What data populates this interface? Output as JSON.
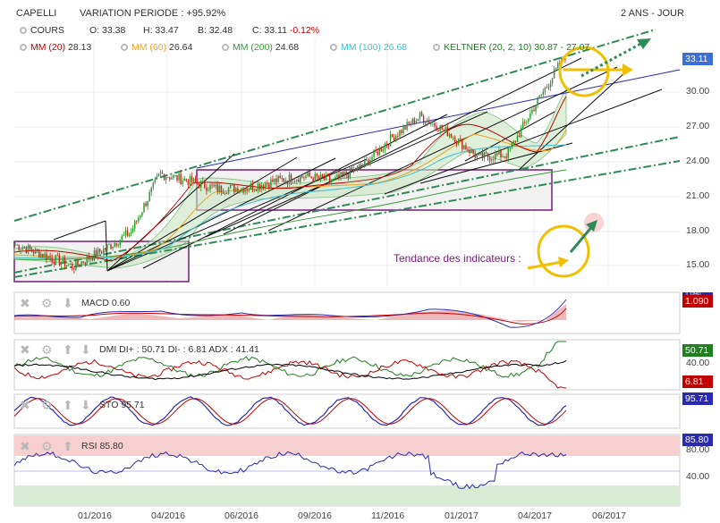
{
  "header": {
    "symbol": "CAPELLI",
    "variation": "VARIATION PERIODE : +95.92%",
    "period": "2 ANS - JOUR"
  },
  "legend": {
    "cours_label": "COURS",
    "open": "O: 33.38",
    "high": "H: 33.47",
    "low": "B: 32.48",
    "close_prefix": "C: 33.11",
    "close_change": "-0.12%",
    "ma20": "MM (20)",
    "ma20_value": "28.13",
    "ma60": "MM (60)",
    "ma60_value": "26.64",
    "ma200": "MM (200)",
    "ma200_value": "24.68",
    "ma100": "MM (100)",
    "ma100_value": "26.68",
    "keltner": "KELTNER (20, 2, 10)",
    "keltner_value": "30.87 - 27.07"
  },
  "colors": {
    "ma20": "#c00000",
    "ma60": "#f0a020",
    "ma200": "#3a9a3a",
    "ma100": "#40c0d0",
    "keltner": "#208020",
    "price_up": "#2a9a2a",
    "price_down": "#cc2222",
    "annotation": "#7a1a7a",
    "trend_dashdot": "#2e8b57",
    "trend_blue": "#2a2ab0",
    "circle": "#f0c000",
    "arrow_green": "#2e8b57",
    "last_price_badge": "#3a6fd8",
    "macd_line": "#2a2ab0",
    "macd_signal": "#c00000",
    "dmi_plus": "#208020",
    "dmi_minus": "#c00000",
    "adx": "#000000",
    "rsi_line": "#2a2ab0",
    "rsi_overbought": "#f7cfcf",
    "rsi_oversold": "#d7ecd2"
  },
  "annotation": "Tendance des indicateurs :",
  "panels": {
    "macd": {
      "label": "MACD",
      "value": "0.60",
      "badge_top": "1.090",
      "badge_bottom": "1.090"
    },
    "dmi": {
      "label": "DMI DI+ : 50.71 DI- : 6.81 ADX : 41.41",
      "badge_plus": "50.71",
      "badge_minus": "6.81",
      "tick_40": "40.00",
      "tick_20": "20.00"
    },
    "sto": {
      "label": "STO",
      "value": "95.71",
      "badge": "95.71"
    },
    "rsi": {
      "label": "RSI",
      "value": "85.80",
      "badge": "85.80",
      "tick_80": "80.00",
      "tick_40": "40.00",
      "tick_20": "20.00"
    }
  },
  "chart_data": {
    "type": "candlestick",
    "x_tick_labels": [
      "01/2016",
      "04/2016",
      "06/2016",
      "09/2016",
      "11/2016",
      "01/2017",
      "04/2017",
      "06/2017"
    ],
    "y_tick_labels": [
      "15.00",
      "18.00",
      "21.00",
      "24.00",
      "27.00",
      "30.00"
    ],
    "ylim": [
      13.5,
      34
    ],
    "last_price": "33.11",
    "price_path": [
      [
        "2015-11",
        16.8
      ],
      [
        "2015-12",
        15.9
      ],
      [
        "2016-01",
        14.9
      ],
      [
        "2016-02",
        16.3
      ],
      [
        "2016-03",
        17.9
      ],
      [
        "2016-04",
        22.9
      ],
      [
        "2016-05",
        22.3
      ],
      [
        "2016-06",
        21.6
      ],
      [
        "2016-07",
        21.7
      ],
      [
        "2016-08",
        22.3
      ],
      [
        "2016-09",
        22.7
      ],
      [
        "2016-10",
        22.3
      ],
      [
        "2016-11",
        23.6
      ],
      [
        "2016-12",
        26.0
      ],
      [
        "2017-01",
        27.9
      ],
      [
        "2017-02",
        26.4
      ],
      [
        "2017-03",
        24.3
      ],
      [
        "2017-04",
        24.6
      ],
      [
        "2017-05",
        29.0
      ],
      [
        "2017-05-15",
        33.11
      ]
    ]
  }
}
